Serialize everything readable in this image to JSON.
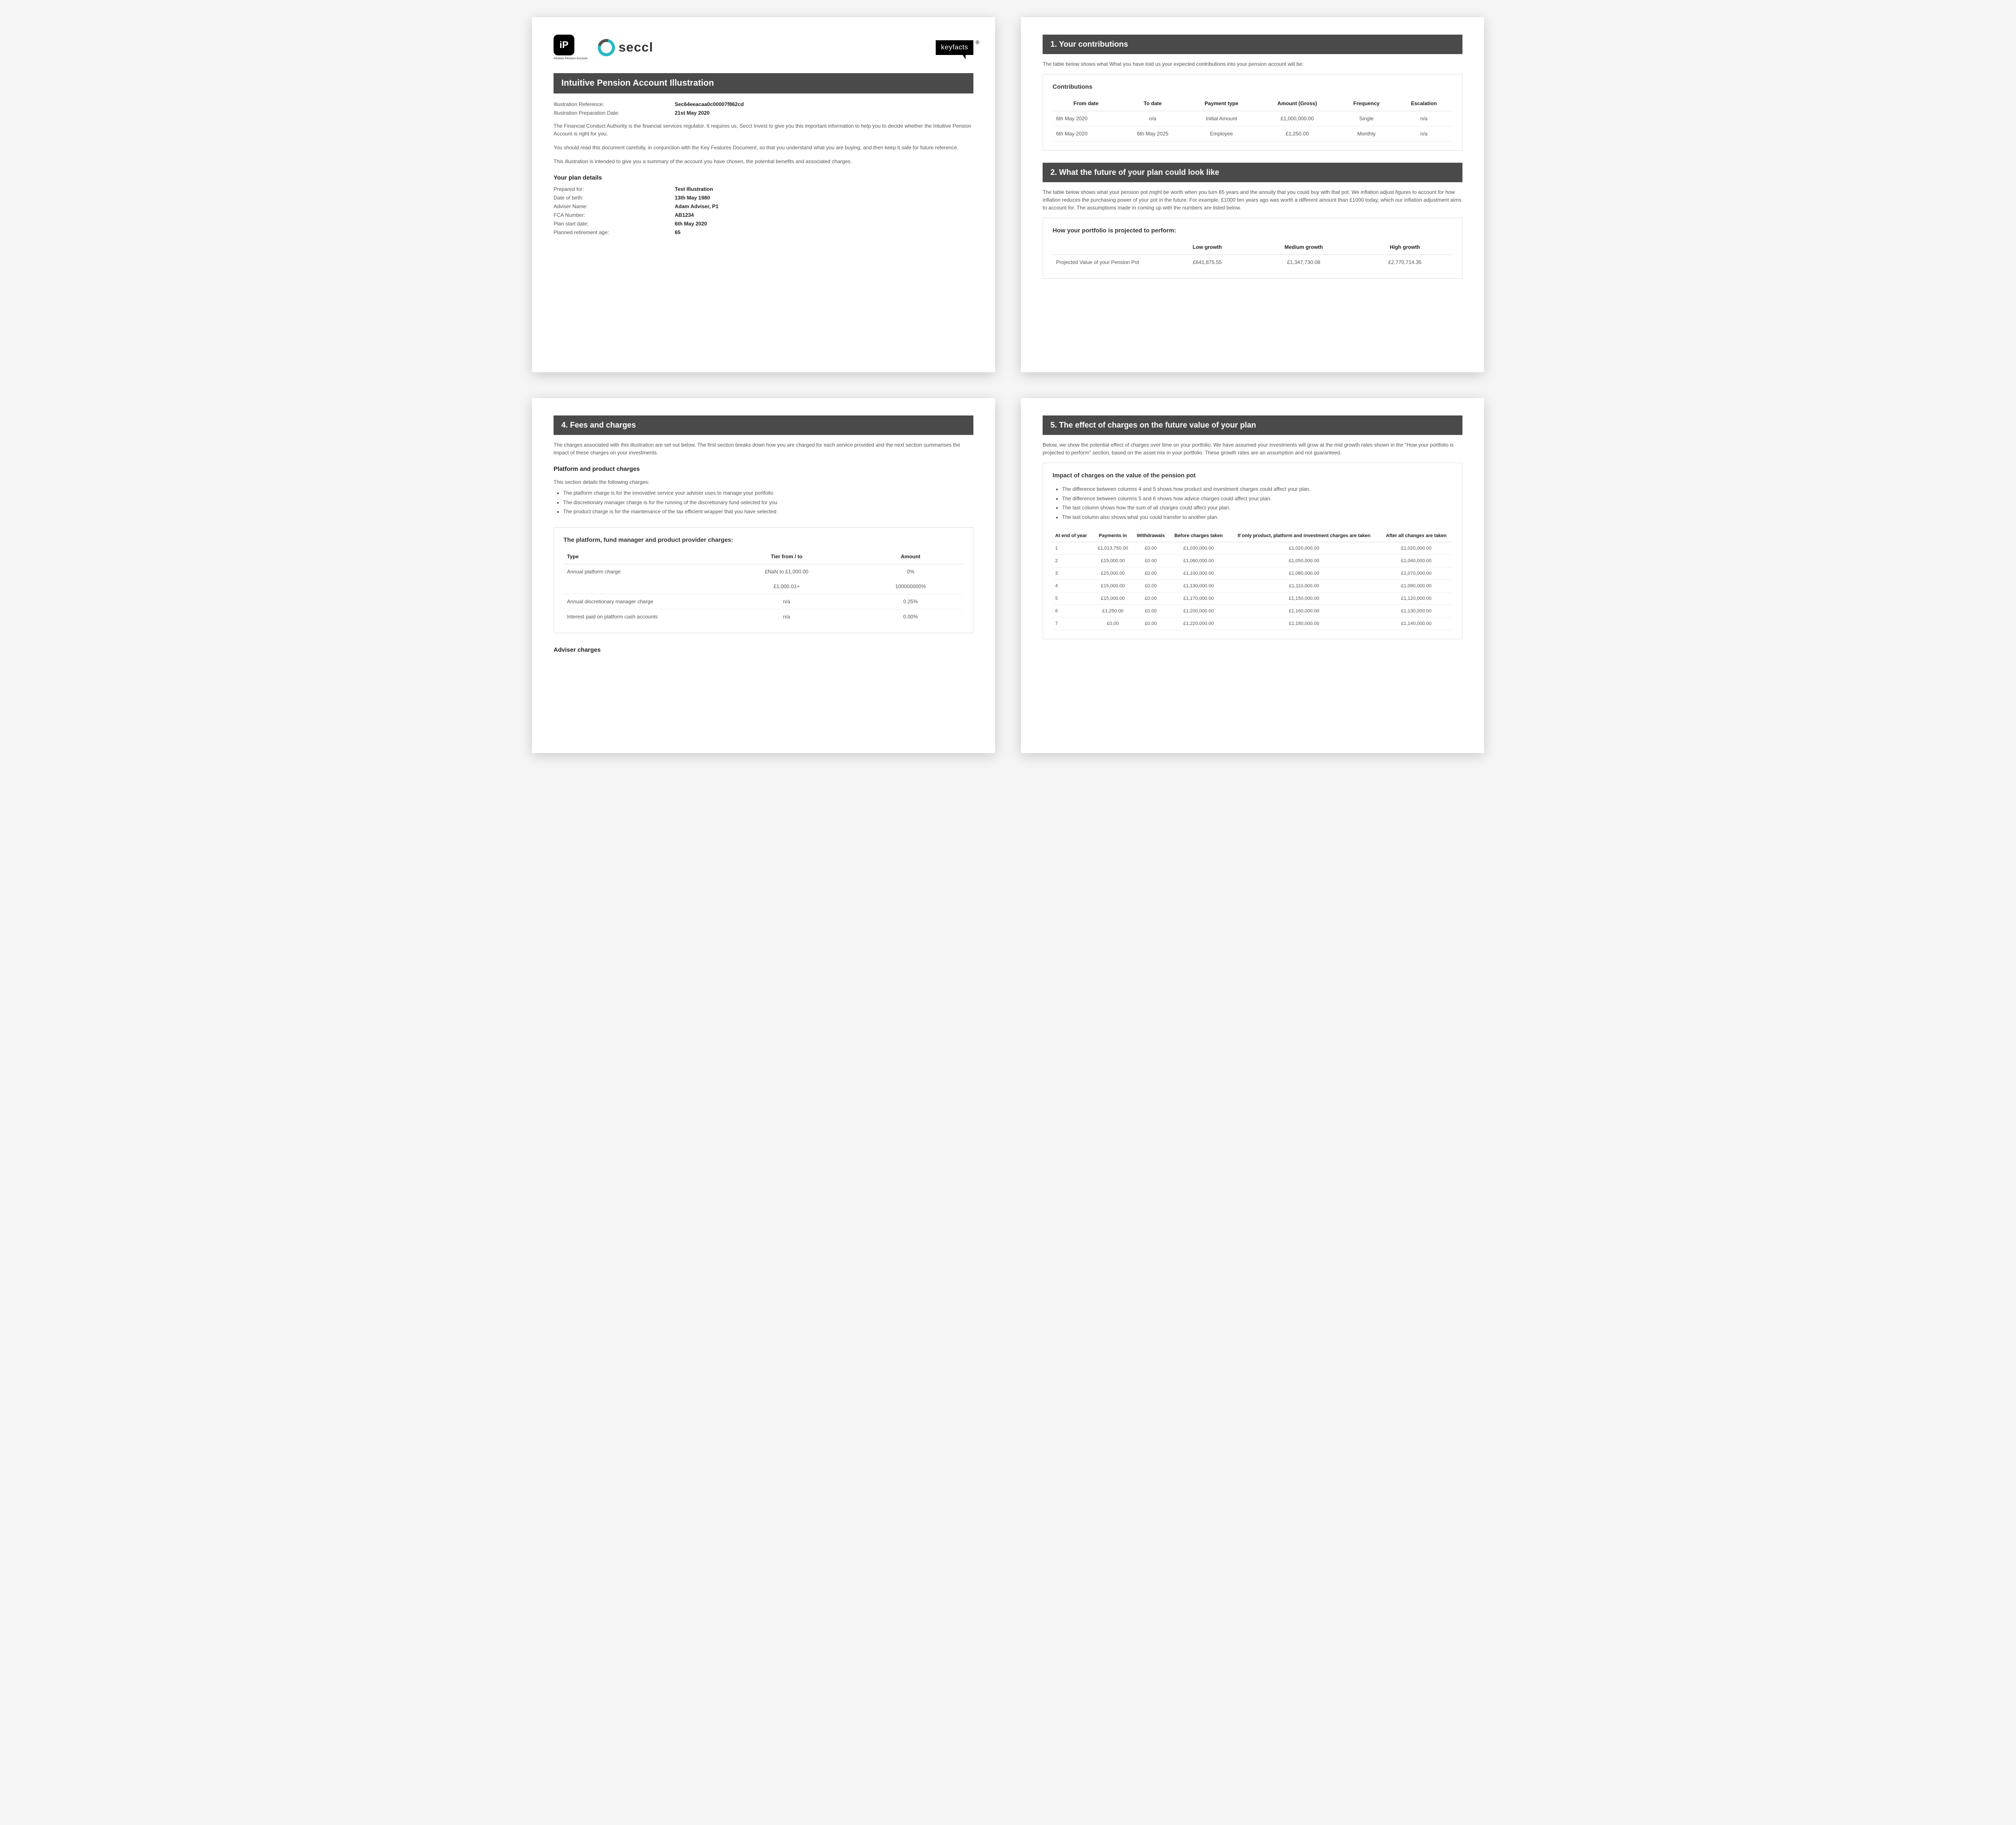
{
  "page1": {
    "logos": {
      "ip_tag": "iP",
      "ip_sub": "Intuitive Pension Account",
      "seccl": "seccl",
      "keyfacts": "keyfacts",
      "keyfacts_reg": "®"
    },
    "title": "Intuitive Pension Account Illustration",
    "meta": {
      "ref_label": "Illustration Reference:",
      "ref_value": "Sec64eeacaa0c00007f862cd",
      "date_label": "Illustration Preparation Date:",
      "date_value": "21st May 2020"
    },
    "intro1": "The Financial Conduct Authority is the financial services regulator. It requires us, Seccl Invest to give you this important information to help you to decide whether the Intuitive Pension Account is right for you.",
    "intro2": "You should read this document carefully, in conjunction with the Key Features Document, so that you understand what you are buying, and then keep it safe for future reference.",
    "intro3": "This illustration is intended to give you a summary of the account you have chosen, the potential benefits and associated charges.",
    "plan_heading": "Your plan details",
    "plan": {
      "prepared_for_l": "Prepared for:",
      "prepared_for_v": "Test Illustration",
      "dob_l": "Date of birth:",
      "dob_v": "13th May 1980",
      "adviser_l": "Adviser Name:",
      "adviser_v": "Adam Adviser, P1",
      "fca_l": "FCA Number:",
      "fca_v": "AB1234",
      "start_l": "Plan start date:",
      "start_v": "6th May 2020",
      "retire_l": "Planned retirement age:",
      "retire_v": "65"
    }
  },
  "page2": {
    "s1_title": "1. Your contributions",
    "s1_intro": "The table below shows what What you have told us your expected contributions into your pension account will be:",
    "contrib_title": "Contributions",
    "contrib_headers": [
      "From date",
      "To date",
      "Payment type",
      "Amount (Gross)",
      "Frequency",
      "Escalation"
    ],
    "contrib_rows": [
      [
        "6th May 2020",
        "n/a",
        "Initial Amount",
        "£1,000,000.00",
        "Single",
        "n/a"
      ],
      [
        "6th May 2020",
        "6th May 2025",
        "Employee",
        "£1,250.00",
        "Monthly",
        "n/a"
      ]
    ],
    "s2_title": "2. What the future of your plan could look like",
    "s2_intro": "The table below shows what your pension pot might be worth when you turn 65 years and the annuity that you could buy with that pot. We inflation adjust figures to account for how inflation reduces the purchasing power of your pot in the future. For example, £1000 ten years ago was worth a different amount than £1000 today, which our inflation adjustment aims to account for. The assumptions made in coming up with the numbers are listed below.",
    "proj_title": "How your portfolio is projected to perform:",
    "proj_headers": [
      "",
      "Low growth",
      "Medium growth",
      "High growth"
    ],
    "proj_row_label": "Projected Value of your Pension Pot",
    "proj_row_vals": [
      "£641,875.55",
      "£1,347,730.08",
      "£2,770,714.35"
    ]
  },
  "page3": {
    "s4_title": "4. Fees and charges",
    "s4_intro": "The charges associated with this illustration are set out below. The first section breaks down how you are charged for each service provided and the next section summarises the impact of these charges on your investments.",
    "ppc_heading": "Platform and product charges",
    "ppc_intro": "This section details the following charges:",
    "ppc_bullets": [
      "The platform charge is for the innovative service your adviser uses to manage your portfolio",
      "The discretionary manager charge is for the running of the discretionary fund selected for you",
      "The product charge is for the maintenance of the tax efficient wrapper that you have selected"
    ],
    "charges_title": "The platform, fund manager and product provider charges:",
    "charges_headers": [
      "Type",
      "Tier from / to",
      "Amount"
    ],
    "charges_rows": [
      [
        "Annual platform charge",
        "£NaN to £1,000.00",
        "0%"
      ],
      [
        "",
        "£1,000.01+",
        "100000000%"
      ],
      [
        "Annual discretionary manager charge",
        "n/a",
        "0.25%"
      ],
      [
        "Interest paid on platform cash accounts",
        "n/a",
        "0.00%"
      ]
    ],
    "adviser_heading": "Adviser charges"
  },
  "page4": {
    "s5_title": "5. The effect of charges on the future value of your plan",
    "s5_intro": "Below, we show the potential effect of charges over time on your portfolio. We have assumed your investments will grow at the mid growth rates shown in the \"How your portfolio is projected to perform\" section, based on the asset mix in your portfolio. These growth rates are an assumption and not guaranteed.",
    "impact_title": "Impact of charges on the value of the pension pot",
    "impact_bullets": [
      "The difference between columns 4 and 5 shows how product and investment charges could affect your plan.",
      "The difference between columns 5 and 6 shows how advice charges could affect your plan.",
      "The last column shows how the sum of all charges could affect your plan.",
      "The last column also shows what you could transfer to another plan."
    ],
    "impact_headers": [
      "At end of year",
      "Payments in",
      "Withdrawals",
      "Before charges taken",
      "If only product, platform and investment charges are taken",
      "After all changes are taken"
    ],
    "impact_rows": [
      [
        "1",
        "£1,013,750.00",
        "£0.00",
        "£1,030,000.00",
        "£1,020,000.00",
        "£1,020,000.00"
      ],
      [
        "2",
        "£15,000.00",
        "£0.00",
        "£1,060,000.00",
        "£1,050,000.00",
        "£1,040,000.00"
      ],
      [
        "3",
        "£15,000.00",
        "£0.00",
        "£1,100,000.00",
        "£1,080,000.00",
        "£1,070,000.00"
      ],
      [
        "4",
        "£15,000.00",
        "£0.00",
        "£1,130,000.00",
        "£1,110,000.00",
        "£1,090,000.00"
      ],
      [
        "5",
        "£15,000.00",
        "£0.00",
        "£1,170,000.00",
        "£1,150,000.00",
        "£1,120,000.00"
      ],
      [
        "6",
        "£1,250.00",
        "£0.00",
        "£1,200,000.00",
        "£1,160,000.00",
        "£1,130,000.00"
      ],
      [
        "7",
        "£0.00",
        "£0.00",
        "£1,220,000.00",
        "£1,180,000.00",
        "£1,140,000.00"
      ]
    ]
  },
  "colors": {
    "bar_bg": "#4a4a4a",
    "page_bg": "#ffffff",
    "body_bg": "#f5f5f5",
    "text_body": "#555555",
    "text_strong": "#222222",
    "border": "#dddddd",
    "seccl_ring": "#2ab8c6"
  }
}
